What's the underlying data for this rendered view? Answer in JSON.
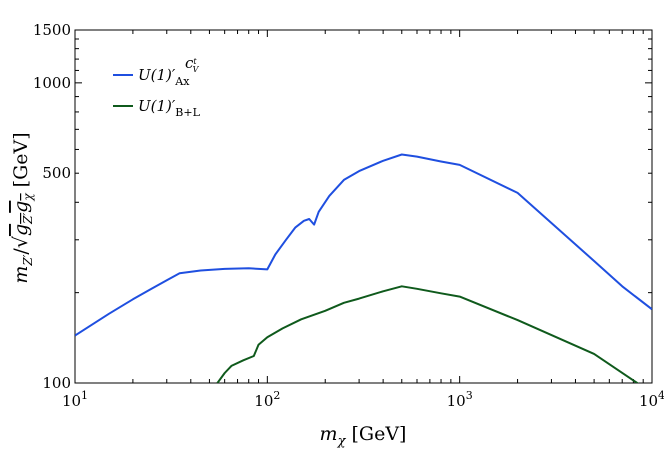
{
  "chart_data": {
    "type": "line",
    "xlabel": "m_χ [GeV]",
    "ylabel": "m_Z′/√(g_Z′ g_χ) [GeV]",
    "xscale": "log",
    "yscale": "log",
    "xlim": [
      10,
      10000
    ],
    "ylim": [
      100,
      1500
    ],
    "grid": false,
    "legend_position": "top-left",
    "x_tick_labels": [
      {
        "value": 10,
        "base": "10",
        "exp": "1"
      },
      {
        "value": 100,
        "base": "10",
        "exp": "2"
      },
      {
        "value": 1000,
        "base": "10",
        "exp": "3"
      },
      {
        "value": 10000,
        "base": "10",
        "exp": "4"
      }
    ],
    "y_tick_labels": [
      {
        "value": 100,
        "label": "100"
      },
      {
        "value": 500,
        "label": "500"
      },
      {
        "value": 1000,
        "label": "1000"
      },
      {
        "value": 1500,
        "label": "1500"
      }
    ],
    "series": [
      {
        "name": "U(1)′_Ax^{c_V^t}",
        "legend": {
          "main": "U(1)′",
          "sub": "Ax",
          "sup": "c",
          "supsup": "t",
          "supsub": "V"
        },
        "color": "#1f4fe0",
        "points": [
          [
            10,
            144
          ],
          [
            15,
            170
          ],
          [
            20,
            190
          ],
          [
            25,
            206
          ],
          [
            30,
            220
          ],
          [
            35,
            232
          ],
          [
            45,
            237
          ],
          [
            60,
            240
          ],
          [
            80,
            241
          ],
          [
            100,
            239
          ],
          [
            110,
            268
          ],
          [
            125,
            300
          ],
          [
            140,
            330
          ],
          [
            155,
            347
          ],
          [
            165,
            352
          ],
          [
            175,
            337
          ],
          [
            185,
            372
          ],
          [
            210,
            420
          ],
          [
            250,
            475
          ],
          [
            300,
            508
          ],
          [
            400,
            550
          ],
          [
            500,
            577
          ],
          [
            600,
            568
          ],
          [
            800,
            547
          ],
          [
            1000,
            533
          ],
          [
            2000,
            430
          ],
          [
            5000,
            255
          ],
          [
            7000,
            210
          ],
          [
            10000,
            176
          ]
        ]
      },
      {
        "name": "U(1)′_{B+L}",
        "legend": {
          "main": "U(1)′",
          "sub": "B+L"
        },
        "color": "#0f5a1c",
        "points": [
          [
            55,
            100
          ],
          [
            60,
            108
          ],
          [
            65,
            114
          ],
          [
            75,
            119
          ],
          [
            85,
            123
          ],
          [
            90,
            134
          ],
          [
            100,
            142
          ],
          [
            120,
            152
          ],
          [
            150,
            163
          ],
          [
            200,
            174
          ],
          [
            250,
            185
          ],
          [
            300,
            191
          ],
          [
            400,
            202
          ],
          [
            500,
            210
          ],
          [
            600,
            206
          ],
          [
            800,
            199
          ],
          [
            1000,
            194
          ],
          [
            2000,
            162
          ],
          [
            5000,
            125
          ],
          [
            8000,
            102
          ],
          [
            9000,
            97
          ]
        ]
      }
    ]
  }
}
